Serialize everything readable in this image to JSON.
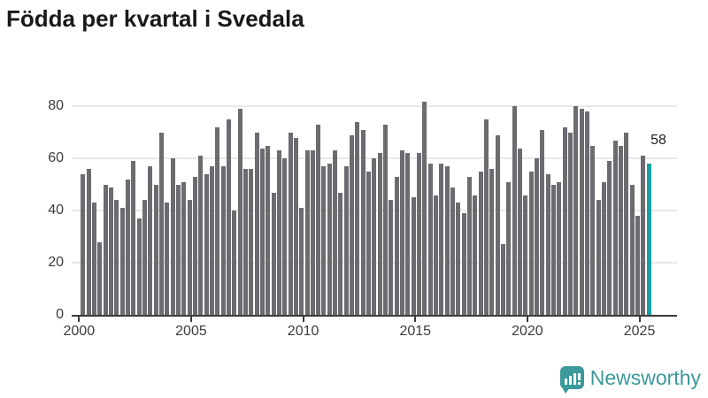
{
  "title": "Födda per kvartal i Svedala",
  "chart_data": {
    "type": "bar",
    "title": "Födda per kvartal i Svedala",
    "xlabel": "",
    "ylabel": "",
    "ylim": [
      0,
      80
    ],
    "yticks": [
      0,
      20,
      40,
      60,
      80
    ],
    "xticks": [
      2000,
      2005,
      2010,
      2015,
      2020,
      2025
    ],
    "grid": "horizontal",
    "legend": "none",
    "bar_color": "#6b6b70",
    "x": [
      "2000Q1",
      "2000Q2",
      "2000Q3",
      "2000Q4",
      "2001Q1",
      "2001Q2",
      "2001Q3",
      "2001Q4",
      "2002Q1",
      "2002Q2",
      "2002Q3",
      "2002Q4",
      "2003Q1",
      "2003Q2",
      "2003Q3",
      "2003Q4",
      "2004Q1",
      "2004Q2",
      "2004Q3",
      "2004Q4",
      "2005Q1",
      "2005Q2",
      "2005Q3",
      "2005Q4",
      "2006Q1",
      "2006Q2",
      "2006Q3",
      "2006Q4",
      "2007Q1",
      "2007Q2",
      "2007Q3",
      "2007Q4",
      "2008Q1",
      "2008Q2",
      "2008Q3",
      "2008Q4",
      "2009Q1",
      "2009Q2",
      "2009Q3",
      "2009Q4",
      "2010Q1",
      "2010Q2",
      "2010Q3",
      "2010Q4",
      "2011Q1",
      "2011Q2",
      "2011Q3",
      "2011Q4",
      "2012Q1",
      "2012Q2",
      "2012Q3",
      "2012Q4",
      "2013Q1",
      "2013Q2",
      "2013Q3",
      "2013Q4",
      "2014Q1",
      "2014Q2",
      "2014Q3",
      "2014Q4",
      "2015Q1",
      "2015Q2",
      "2015Q3",
      "2015Q4",
      "2016Q1",
      "2016Q2",
      "2016Q3",
      "2016Q4",
      "2017Q1",
      "2017Q2",
      "2017Q3",
      "2017Q4",
      "2018Q1",
      "2018Q2",
      "2018Q3",
      "2018Q4",
      "2019Q1",
      "2019Q2",
      "2019Q3",
      "2019Q4",
      "2020Q1",
      "2020Q2",
      "2020Q3",
      "2020Q4",
      "2021Q1",
      "2021Q2",
      "2021Q3",
      "2021Q4",
      "2022Q1",
      "2022Q2",
      "2022Q3",
      "2022Q4",
      "2023Q1",
      "2023Q2",
      "2023Q3",
      "2023Q4",
      "2024Q1",
      "2024Q2",
      "2024Q3",
      "2024Q4",
      "2025Q1",
      "2025Q2"
    ],
    "values": [
      54,
      56,
      43,
      28,
      50,
      49,
      44,
      41,
      52,
      59,
      37,
      44,
      57,
      50,
      70,
      43,
      60,
      50,
      51,
      44,
      53,
      61,
      54,
      57,
      72,
      57,
      75,
      40,
      79,
      56,
      56,
      70,
      64,
      65,
      47,
      63,
      60,
      70,
      68,
      41,
      63,
      63,
      73,
      57,
      58,
      63,
      47,
      57,
      69,
      74,
      71,
      55,
      60,
      62,
      73,
      44,
      53,
      63,
      62,
      45,
      62,
      82,
      58,
      46,
      58,
      57,
      49,
      43,
      39,
      53,
      46,
      55,
      75,
      56,
      69,
      27,
      51,
      80,
      64,
      46,
      55,
      60,
      71,
      54,
      50,
      51,
      72,
      70,
      80,
      79,
      78,
      65,
      44,
      51,
      59,
      67,
      65,
      70,
      50,
      38,
      61,
      58
    ],
    "highlight": {
      "index": 101,
      "x": "2025Q2",
      "value": 58,
      "label": "58",
      "color": "#14a0a0"
    }
  },
  "branding": {
    "logo_text": "Newsworthy",
    "logo_color": "#3b999b",
    "logo_icon": "bar-chart-speech-bubble-icon"
  }
}
